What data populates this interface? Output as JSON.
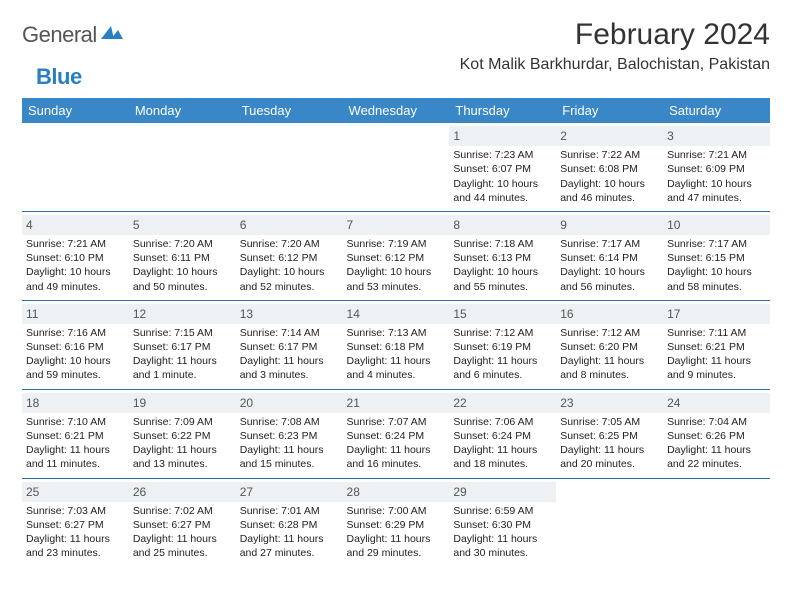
{
  "logo": {
    "word1": "General",
    "word2": "Blue"
  },
  "title": "February 2024",
  "location": "Kot Malik Barkhurdar, Balochistan, Pakistan",
  "colors": {
    "header_bg": "#3a87c8",
    "header_text": "#ffffff",
    "daynum_bg": "#eef1f3",
    "row_border": "#2e6fa5",
    "logo_gray": "#555555",
    "logo_blue": "#2a7fbf"
  },
  "weekdays": [
    "Sunday",
    "Monday",
    "Tuesday",
    "Wednesday",
    "Thursday",
    "Friday",
    "Saturday"
  ],
  "weeks": [
    [
      null,
      null,
      null,
      null,
      {
        "num": "1",
        "sunrise": "Sunrise: 7:23 AM",
        "sunset": "Sunset: 6:07 PM",
        "daylight": "Daylight: 10 hours and 44 minutes."
      },
      {
        "num": "2",
        "sunrise": "Sunrise: 7:22 AM",
        "sunset": "Sunset: 6:08 PM",
        "daylight": "Daylight: 10 hours and 46 minutes."
      },
      {
        "num": "3",
        "sunrise": "Sunrise: 7:21 AM",
        "sunset": "Sunset: 6:09 PM",
        "daylight": "Daylight: 10 hours and 47 minutes."
      }
    ],
    [
      {
        "num": "4",
        "sunrise": "Sunrise: 7:21 AM",
        "sunset": "Sunset: 6:10 PM",
        "daylight": "Daylight: 10 hours and 49 minutes."
      },
      {
        "num": "5",
        "sunrise": "Sunrise: 7:20 AM",
        "sunset": "Sunset: 6:11 PM",
        "daylight": "Daylight: 10 hours and 50 minutes."
      },
      {
        "num": "6",
        "sunrise": "Sunrise: 7:20 AM",
        "sunset": "Sunset: 6:12 PM",
        "daylight": "Daylight: 10 hours and 52 minutes."
      },
      {
        "num": "7",
        "sunrise": "Sunrise: 7:19 AM",
        "sunset": "Sunset: 6:12 PM",
        "daylight": "Daylight: 10 hours and 53 minutes."
      },
      {
        "num": "8",
        "sunrise": "Sunrise: 7:18 AM",
        "sunset": "Sunset: 6:13 PM",
        "daylight": "Daylight: 10 hours and 55 minutes."
      },
      {
        "num": "9",
        "sunrise": "Sunrise: 7:17 AM",
        "sunset": "Sunset: 6:14 PM",
        "daylight": "Daylight: 10 hours and 56 minutes."
      },
      {
        "num": "10",
        "sunrise": "Sunrise: 7:17 AM",
        "sunset": "Sunset: 6:15 PM",
        "daylight": "Daylight: 10 hours and 58 minutes."
      }
    ],
    [
      {
        "num": "11",
        "sunrise": "Sunrise: 7:16 AM",
        "sunset": "Sunset: 6:16 PM",
        "daylight": "Daylight: 10 hours and 59 minutes."
      },
      {
        "num": "12",
        "sunrise": "Sunrise: 7:15 AM",
        "sunset": "Sunset: 6:17 PM",
        "daylight": "Daylight: 11 hours and 1 minute."
      },
      {
        "num": "13",
        "sunrise": "Sunrise: 7:14 AM",
        "sunset": "Sunset: 6:17 PM",
        "daylight": "Daylight: 11 hours and 3 minutes."
      },
      {
        "num": "14",
        "sunrise": "Sunrise: 7:13 AM",
        "sunset": "Sunset: 6:18 PM",
        "daylight": "Daylight: 11 hours and 4 minutes."
      },
      {
        "num": "15",
        "sunrise": "Sunrise: 7:12 AM",
        "sunset": "Sunset: 6:19 PM",
        "daylight": "Daylight: 11 hours and 6 minutes."
      },
      {
        "num": "16",
        "sunrise": "Sunrise: 7:12 AM",
        "sunset": "Sunset: 6:20 PM",
        "daylight": "Daylight: 11 hours and 8 minutes."
      },
      {
        "num": "17",
        "sunrise": "Sunrise: 7:11 AM",
        "sunset": "Sunset: 6:21 PM",
        "daylight": "Daylight: 11 hours and 9 minutes."
      }
    ],
    [
      {
        "num": "18",
        "sunrise": "Sunrise: 7:10 AM",
        "sunset": "Sunset: 6:21 PM",
        "daylight": "Daylight: 11 hours and 11 minutes."
      },
      {
        "num": "19",
        "sunrise": "Sunrise: 7:09 AM",
        "sunset": "Sunset: 6:22 PM",
        "daylight": "Daylight: 11 hours and 13 minutes."
      },
      {
        "num": "20",
        "sunrise": "Sunrise: 7:08 AM",
        "sunset": "Sunset: 6:23 PM",
        "daylight": "Daylight: 11 hours and 15 minutes."
      },
      {
        "num": "21",
        "sunrise": "Sunrise: 7:07 AM",
        "sunset": "Sunset: 6:24 PM",
        "daylight": "Daylight: 11 hours and 16 minutes."
      },
      {
        "num": "22",
        "sunrise": "Sunrise: 7:06 AM",
        "sunset": "Sunset: 6:24 PM",
        "daylight": "Daylight: 11 hours and 18 minutes."
      },
      {
        "num": "23",
        "sunrise": "Sunrise: 7:05 AM",
        "sunset": "Sunset: 6:25 PM",
        "daylight": "Daylight: 11 hours and 20 minutes."
      },
      {
        "num": "24",
        "sunrise": "Sunrise: 7:04 AM",
        "sunset": "Sunset: 6:26 PM",
        "daylight": "Daylight: 11 hours and 22 minutes."
      }
    ],
    [
      {
        "num": "25",
        "sunrise": "Sunrise: 7:03 AM",
        "sunset": "Sunset: 6:27 PM",
        "daylight": "Daylight: 11 hours and 23 minutes."
      },
      {
        "num": "26",
        "sunrise": "Sunrise: 7:02 AM",
        "sunset": "Sunset: 6:27 PM",
        "daylight": "Daylight: 11 hours and 25 minutes."
      },
      {
        "num": "27",
        "sunrise": "Sunrise: 7:01 AM",
        "sunset": "Sunset: 6:28 PM",
        "daylight": "Daylight: 11 hours and 27 minutes."
      },
      {
        "num": "28",
        "sunrise": "Sunrise: 7:00 AM",
        "sunset": "Sunset: 6:29 PM",
        "daylight": "Daylight: 11 hours and 29 minutes."
      },
      {
        "num": "29",
        "sunrise": "Sunrise: 6:59 AM",
        "sunset": "Sunset: 6:30 PM",
        "daylight": "Daylight: 11 hours and 30 minutes."
      },
      null,
      null
    ]
  ]
}
